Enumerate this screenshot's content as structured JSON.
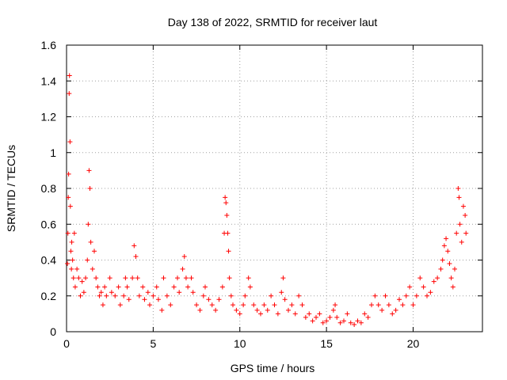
{
  "chart_data": {
    "type": "scatter",
    "title": "Day 138 of 2022, SRMTID for receiver laut",
    "xlabel": "GPS time / hours",
    "ylabel": "SRMTID / TECUs",
    "xlim": [
      0,
      24
    ],
    "ylim": [
      0,
      1.6
    ],
    "xticks": [
      0,
      5,
      10,
      15,
      20
    ],
    "xtick_labels": [
      "0",
      "5",
      "10",
      "15",
      "20"
    ],
    "yticks": [
      0,
      0.2,
      0.4,
      0.6,
      0.8,
      1,
      1.2,
      1.4,
      1.6
    ],
    "ytick_labels": [
      "0",
      "0.2",
      "0.4",
      "0.6",
      "0.8",
      "1",
      "1.2",
      "1.4",
      "1.6"
    ],
    "grid": true,
    "marker": "+",
    "marker_color": "#ff0000",
    "series": [
      {
        "name": "SRMTID",
        "points": [
          [
            0.05,
            0.38
          ],
          [
            0.08,
            0.55
          ],
          [
            0.1,
            0.75
          ],
          [
            0.12,
            0.88
          ],
          [
            0.15,
            1.33
          ],
          [
            0.17,
            1.43
          ],
          [
            0.2,
            1.06
          ],
          [
            0.22,
            0.7
          ],
          [
            0.25,
            0.45
          ],
          [
            0.28,
            0.35
          ],
          [
            0.3,
            0.5
          ],
          [
            0.35,
            0.4
          ],
          [
            0.4,
            0.3
          ],
          [
            0.45,
            0.55
          ],
          [
            0.5,
            0.25
          ],
          [
            0.6,
            0.35
          ],
          [
            0.7,
            0.3
          ],
          [
            0.8,
            0.2
          ],
          [
            0.9,
            0.28
          ],
          [
            1.0,
            0.22
          ],
          [
            1.1,
            0.3
          ],
          [
            1.2,
            0.4
          ],
          [
            1.25,
            0.6
          ],
          [
            1.3,
            0.9
          ],
          [
            1.35,
            0.8
          ],
          [
            1.4,
            0.5
          ],
          [
            1.5,
            0.35
          ],
          [
            1.6,
            0.45
          ],
          [
            1.7,
            0.3
          ],
          [
            1.8,
            0.25
          ],
          [
            1.9,
            0.2
          ],
          [
            2.0,
            0.22
          ],
          [
            2.1,
            0.15
          ],
          [
            2.2,
            0.25
          ],
          [
            2.3,
            0.2
          ],
          [
            2.5,
            0.3
          ],
          [
            2.6,
            0.22
          ],
          [
            2.8,
            0.2
          ],
          [
            3.0,
            0.25
          ],
          [
            3.1,
            0.15
          ],
          [
            3.3,
            0.2
          ],
          [
            3.4,
            0.3
          ],
          [
            3.5,
            0.25
          ],
          [
            3.6,
            0.18
          ],
          [
            3.8,
            0.3
          ],
          [
            3.9,
            0.48
          ],
          [
            4.0,
            0.42
          ],
          [
            4.1,
            0.3
          ],
          [
            4.2,
            0.2
          ],
          [
            4.4,
            0.25
          ],
          [
            4.5,
            0.18
          ],
          [
            4.7,
            0.22
          ],
          [
            4.8,
            0.15
          ],
          [
            5.0,
            0.2
          ],
          [
            5.2,
            0.25
          ],
          [
            5.3,
            0.18
          ],
          [
            5.5,
            0.12
          ],
          [
            5.6,
            0.3
          ],
          [
            5.8,
            0.2
          ],
          [
            6.0,
            0.15
          ],
          [
            6.2,
            0.25
          ],
          [
            6.4,
            0.3
          ],
          [
            6.5,
            0.22
          ],
          [
            6.7,
            0.35
          ],
          [
            6.8,
            0.42
          ],
          [
            6.9,
            0.3
          ],
          [
            7.0,
            0.25
          ],
          [
            7.2,
            0.3
          ],
          [
            7.3,
            0.22
          ],
          [
            7.5,
            0.15
          ],
          [
            7.7,
            0.12
          ],
          [
            7.9,
            0.2
          ],
          [
            8.0,
            0.25
          ],
          [
            8.2,
            0.18
          ],
          [
            8.4,
            0.15
          ],
          [
            8.6,
            0.12
          ],
          [
            8.8,
            0.18
          ],
          [
            9.0,
            0.25
          ],
          [
            9.1,
            0.55
          ],
          [
            9.15,
            0.75
          ],
          [
            9.2,
            0.72
          ],
          [
            9.25,
            0.65
          ],
          [
            9.3,
            0.55
          ],
          [
            9.35,
            0.45
          ],
          [
            9.4,
            0.3
          ],
          [
            9.5,
            0.2
          ],
          [
            9.6,
            0.15
          ],
          [
            9.8,
            0.12
          ],
          [
            10.0,
            0.1
          ],
          [
            10.2,
            0.15
          ],
          [
            10.3,
            0.2
          ],
          [
            10.5,
            0.3
          ],
          [
            10.6,
            0.25
          ],
          [
            10.8,
            0.15
          ],
          [
            11.0,
            0.12
          ],
          [
            11.2,
            0.1
          ],
          [
            11.4,
            0.15
          ],
          [
            11.6,
            0.12
          ],
          [
            11.8,
            0.2
          ],
          [
            12.0,
            0.15
          ],
          [
            12.2,
            0.1
          ],
          [
            12.4,
            0.22
          ],
          [
            12.5,
            0.3
          ],
          [
            12.6,
            0.18
          ],
          [
            12.8,
            0.12
          ],
          [
            13.0,
            0.15
          ],
          [
            13.2,
            0.1
          ],
          [
            13.4,
            0.2
          ],
          [
            13.6,
            0.15
          ],
          [
            13.8,
            0.08
          ],
          [
            14.0,
            0.1
          ],
          [
            14.2,
            0.06
          ],
          [
            14.4,
            0.08
          ],
          [
            14.6,
            0.1
          ],
          [
            14.8,
            0.05
          ],
          [
            15.0,
            0.06
          ],
          [
            15.2,
            0.08
          ],
          [
            15.4,
            0.12
          ],
          [
            15.5,
            0.15
          ],
          [
            15.6,
            0.08
          ],
          [
            15.8,
            0.05
          ],
          [
            16.0,
            0.06
          ],
          [
            16.2,
            0.1
          ],
          [
            16.4,
            0.05
          ],
          [
            16.6,
            0.04
          ],
          [
            16.8,
            0.06
          ],
          [
            17.0,
            0.05
          ],
          [
            17.2,
            0.1
          ],
          [
            17.4,
            0.08
          ],
          [
            17.6,
            0.15
          ],
          [
            17.8,
            0.2
          ],
          [
            18.0,
            0.15
          ],
          [
            18.2,
            0.12
          ],
          [
            18.4,
            0.2
          ],
          [
            18.6,
            0.15
          ],
          [
            18.8,
            0.1
          ],
          [
            19.0,
            0.12
          ],
          [
            19.2,
            0.18
          ],
          [
            19.4,
            0.15
          ],
          [
            19.6,
            0.2
          ],
          [
            19.8,
            0.25
          ],
          [
            20.0,
            0.15
          ],
          [
            20.2,
            0.2
          ],
          [
            20.4,
            0.3
          ],
          [
            20.6,
            0.25
          ],
          [
            20.8,
            0.2
          ],
          [
            21.0,
            0.22
          ],
          [
            21.2,
            0.28
          ],
          [
            21.4,
            0.3
          ],
          [
            21.6,
            0.35
          ],
          [
            21.7,
            0.4
          ],
          [
            21.8,
            0.48
          ],
          [
            21.9,
            0.52
          ],
          [
            22.0,
            0.45
          ],
          [
            22.1,
            0.38
          ],
          [
            22.2,
            0.3
          ],
          [
            22.3,
            0.25
          ],
          [
            22.4,
            0.35
          ],
          [
            22.5,
            0.55
          ],
          [
            22.6,
            0.8
          ],
          [
            22.65,
            0.75
          ],
          [
            22.7,
            0.6
          ],
          [
            22.8,
            0.5
          ],
          [
            22.9,
            0.7
          ],
          [
            23.0,
            0.65
          ],
          [
            23.05,
            0.55
          ]
        ]
      }
    ]
  }
}
